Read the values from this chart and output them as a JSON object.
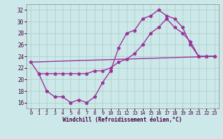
{
  "background_color": "#cce8e8",
  "grid_color": "#aacccc",
  "line_color": "#993399",
  "marker": "*",
  "marker_size": 3.5,
  "line_width": 1.0,
  "series1_x": [
    0,
    23
  ],
  "series1_y": [
    23,
    24
  ],
  "series2_x": [
    0,
    1,
    2,
    3,
    4,
    5,
    6,
    7,
    8,
    9,
    10,
    11,
    12,
    13,
    14,
    15,
    16,
    17,
    18,
    19,
    20,
    21,
    22,
    23
  ],
  "series2_y": [
    23,
    21,
    18,
    17,
    17,
    16,
    16.5,
    16,
    17,
    19.5,
    21.5,
    25.5,
    28,
    28.5,
    30.5,
    31,
    32,
    31,
    30.5,
    29,
    26,
    24,
    24,
    24
  ],
  "series3_x": [
    1,
    2,
    3,
    4,
    5,
    6,
    7,
    8,
    9,
    10,
    11,
    12,
    13,
    14,
    15,
    16,
    17,
    18,
    19,
    20,
    21,
    22,
    23
  ],
  "series3_y": [
    21,
    21,
    21,
    21,
    21,
    21,
    21,
    21.5,
    21.5,
    22,
    23,
    23.5,
    24.5,
    26,
    28,
    29,
    30.5,
    29,
    28,
    26.5,
    24,
    24,
    24
  ],
  "xlabel": "Windchill (Refroidissement éolien,°C)",
  "xlim": [
    -0.5,
    23.5
  ],
  "ylim": [
    15,
    33
  ],
  "yticks": [
    16,
    18,
    20,
    22,
    24,
    26,
    28,
    30,
    32
  ],
  "xticks": [
    0,
    1,
    2,
    3,
    4,
    5,
    6,
    7,
    8,
    9,
    10,
    11,
    12,
    13,
    14,
    15,
    16,
    17,
    18,
    19,
    20,
    21,
    22,
    23
  ]
}
